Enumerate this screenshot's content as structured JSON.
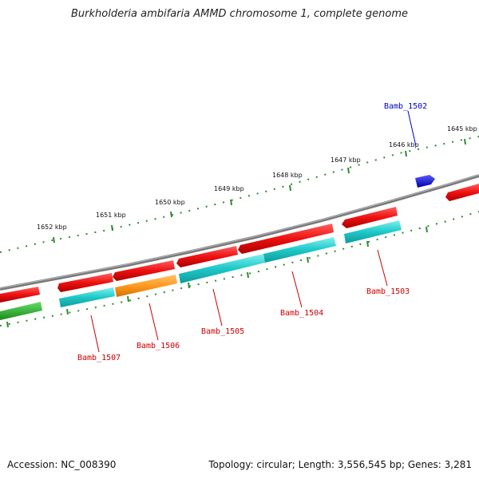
{
  "title": "Burkholderia ambifaria AMMD chromosome 1, complete genome",
  "accession": "Accession: NC_008390",
  "summary": "Topology: circular; Length: 3,556,545 bp; Genes: 3,281",
  "colors": {
    "backbone": "#808080",
    "tick": "#2e8b2e",
    "forward_gene": "#ee1111",
    "reverse_gene": "#1ec8c8",
    "highlight_gene": "#ff9a1f",
    "blue_gene": "#1010dd",
    "green_gene": "#33bb33",
    "label_red": "#cc0000",
    "label_blue": "#0000cc"
  },
  "tick_labels": [
    "1652 kbp",
    "1651 kbp",
    "1650 kbp",
    "1649 kbp",
    "1648 kbp",
    "1647 kbp",
    "1646 kbp",
    "1645 kbp"
  ],
  "gene_labels": [
    {
      "name": "Bamb_1502",
      "color": "blue"
    },
    {
      "name": "Bamb_1503",
      "color": "red"
    },
    {
      "name": "Bamb_1504",
      "color": "red"
    },
    {
      "name": "Bamb_1505",
      "color": "red"
    },
    {
      "name": "Bamb_1506",
      "color": "red"
    },
    {
      "name": "Bamb_1507",
      "color": "red"
    }
  ]
}
